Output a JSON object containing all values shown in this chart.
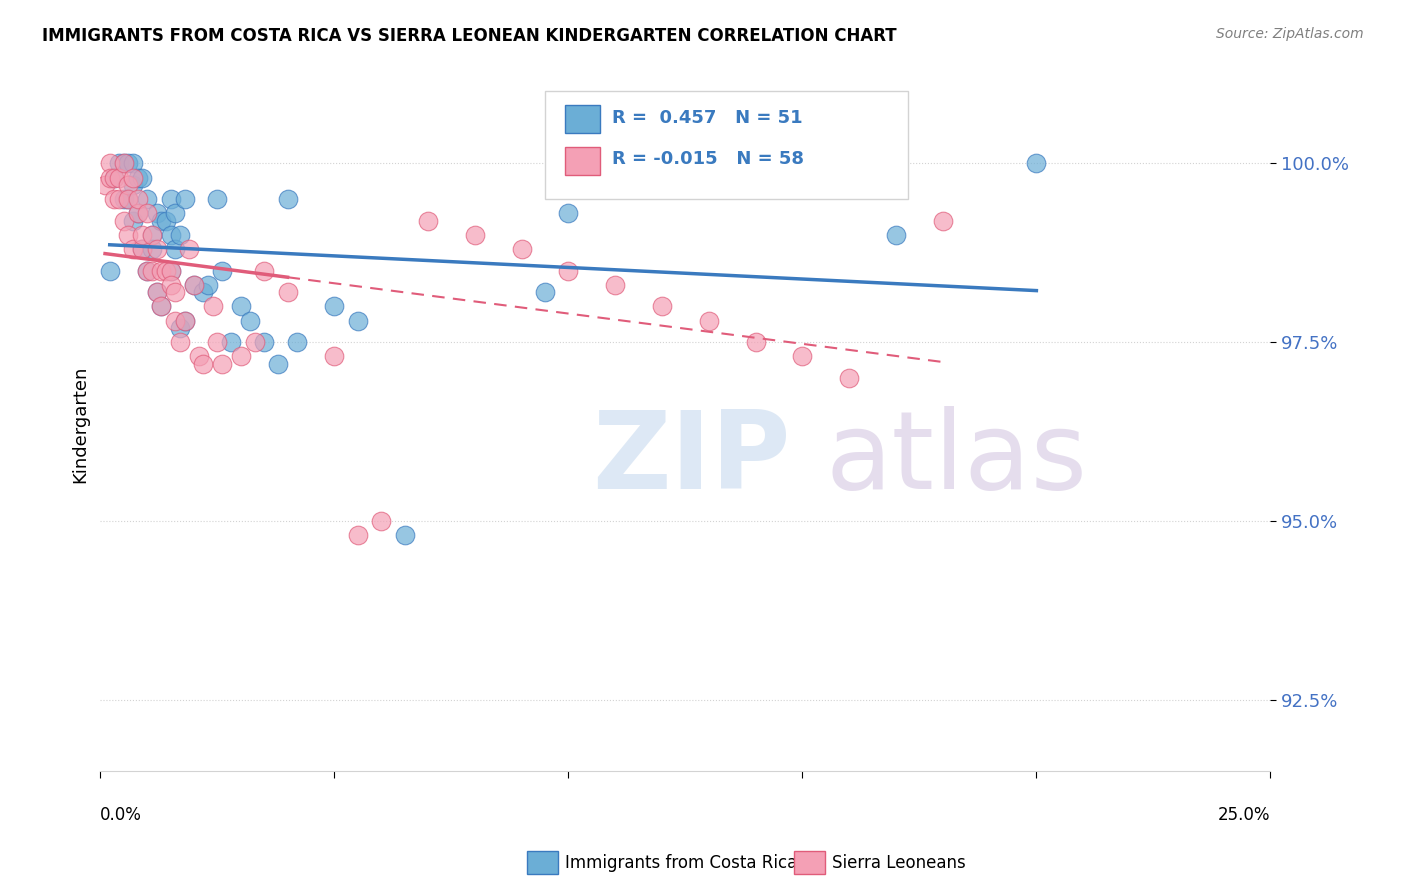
{
  "title": "IMMIGRANTS FROM COSTA RICA VS SIERRA LEONEAN KINDERGARTEN CORRELATION CHART",
  "source": "Source: ZipAtlas.com",
  "ylabel": "Kindergarten",
  "yticks": [
    92.5,
    95.0,
    97.5,
    100.0
  ],
  "ytick_labels": [
    "92.5%",
    "95.0%",
    "97.5%",
    "100.0%"
  ],
  "xlim": [
    0.0,
    0.25
  ],
  "ylim": [
    91.5,
    101.2
  ],
  "blue_R": 0.457,
  "blue_N": 51,
  "pink_R": -0.015,
  "pink_N": 58,
  "blue_color": "#6baed6",
  "pink_color": "#f4a0b5",
  "blue_line_color": "#3a7abf",
  "pink_line_color": "#e05c7a",
  "blue_scatter_x": [
    0.002,
    0.003,
    0.004,
    0.005,
    0.005,
    0.006,
    0.006,
    0.007,
    0.007,
    0.007,
    0.008,
    0.008,
    0.009,
    0.009,
    0.01,
    0.01,
    0.011,
    0.011,
    0.012,
    0.012,
    0.013,
    0.013,
    0.014,
    0.015,
    0.015,
    0.015,
    0.016,
    0.016,
    0.017,
    0.017,
    0.018,
    0.018,
    0.02,
    0.022,
    0.023,
    0.025,
    0.026,
    0.028,
    0.03,
    0.032,
    0.035,
    0.038,
    0.04,
    0.042,
    0.05,
    0.055,
    0.065,
    0.095,
    0.1,
    0.17,
    0.2
  ],
  "blue_scatter_y": [
    98.5,
    99.8,
    100.0,
    100.0,
    99.5,
    99.5,
    100.0,
    99.7,
    100.0,
    99.2,
    99.8,
    99.3,
    98.8,
    99.8,
    99.5,
    98.5,
    99.0,
    98.8,
    99.3,
    98.2,
    98.0,
    99.2,
    99.2,
    99.0,
    98.5,
    99.5,
    98.8,
    99.3,
    99.0,
    97.7,
    99.5,
    97.8,
    98.3,
    98.2,
    98.3,
    99.5,
    98.5,
    97.5,
    98.0,
    97.8,
    97.5,
    97.2,
    99.5,
    97.5,
    98.0,
    97.8,
    94.8,
    98.2,
    99.3,
    99.0,
    100.0
  ],
  "pink_scatter_x": [
    0.001,
    0.002,
    0.002,
    0.003,
    0.003,
    0.004,
    0.004,
    0.005,
    0.005,
    0.006,
    0.006,
    0.006,
    0.007,
    0.007,
    0.008,
    0.008,
    0.009,
    0.009,
    0.01,
    0.01,
    0.011,
    0.011,
    0.012,
    0.012,
    0.013,
    0.013,
    0.014,
    0.015,
    0.015,
    0.016,
    0.016,
    0.017,
    0.018,
    0.019,
    0.02,
    0.021,
    0.022,
    0.024,
    0.025,
    0.026,
    0.03,
    0.033,
    0.035,
    0.04,
    0.05,
    0.055,
    0.06,
    0.07,
    0.08,
    0.09,
    0.1,
    0.11,
    0.12,
    0.13,
    0.14,
    0.15,
    0.16,
    0.18
  ],
  "pink_scatter_y": [
    99.7,
    100.0,
    99.8,
    99.8,
    99.5,
    99.5,
    99.8,
    100.0,
    99.2,
    99.7,
    99.5,
    99.0,
    99.8,
    98.8,
    99.3,
    99.5,
    98.8,
    99.0,
    98.5,
    99.3,
    98.5,
    99.0,
    98.2,
    98.8,
    98.0,
    98.5,
    98.5,
    98.5,
    98.3,
    97.8,
    98.2,
    97.5,
    97.8,
    98.8,
    98.3,
    97.3,
    97.2,
    98.0,
    97.5,
    97.2,
    97.3,
    97.5,
    98.5,
    98.2,
    97.3,
    94.8,
    95.0,
    99.2,
    99.0,
    98.8,
    98.5,
    98.3,
    98.0,
    97.8,
    97.5,
    97.3,
    97.0,
    99.2
  ]
}
